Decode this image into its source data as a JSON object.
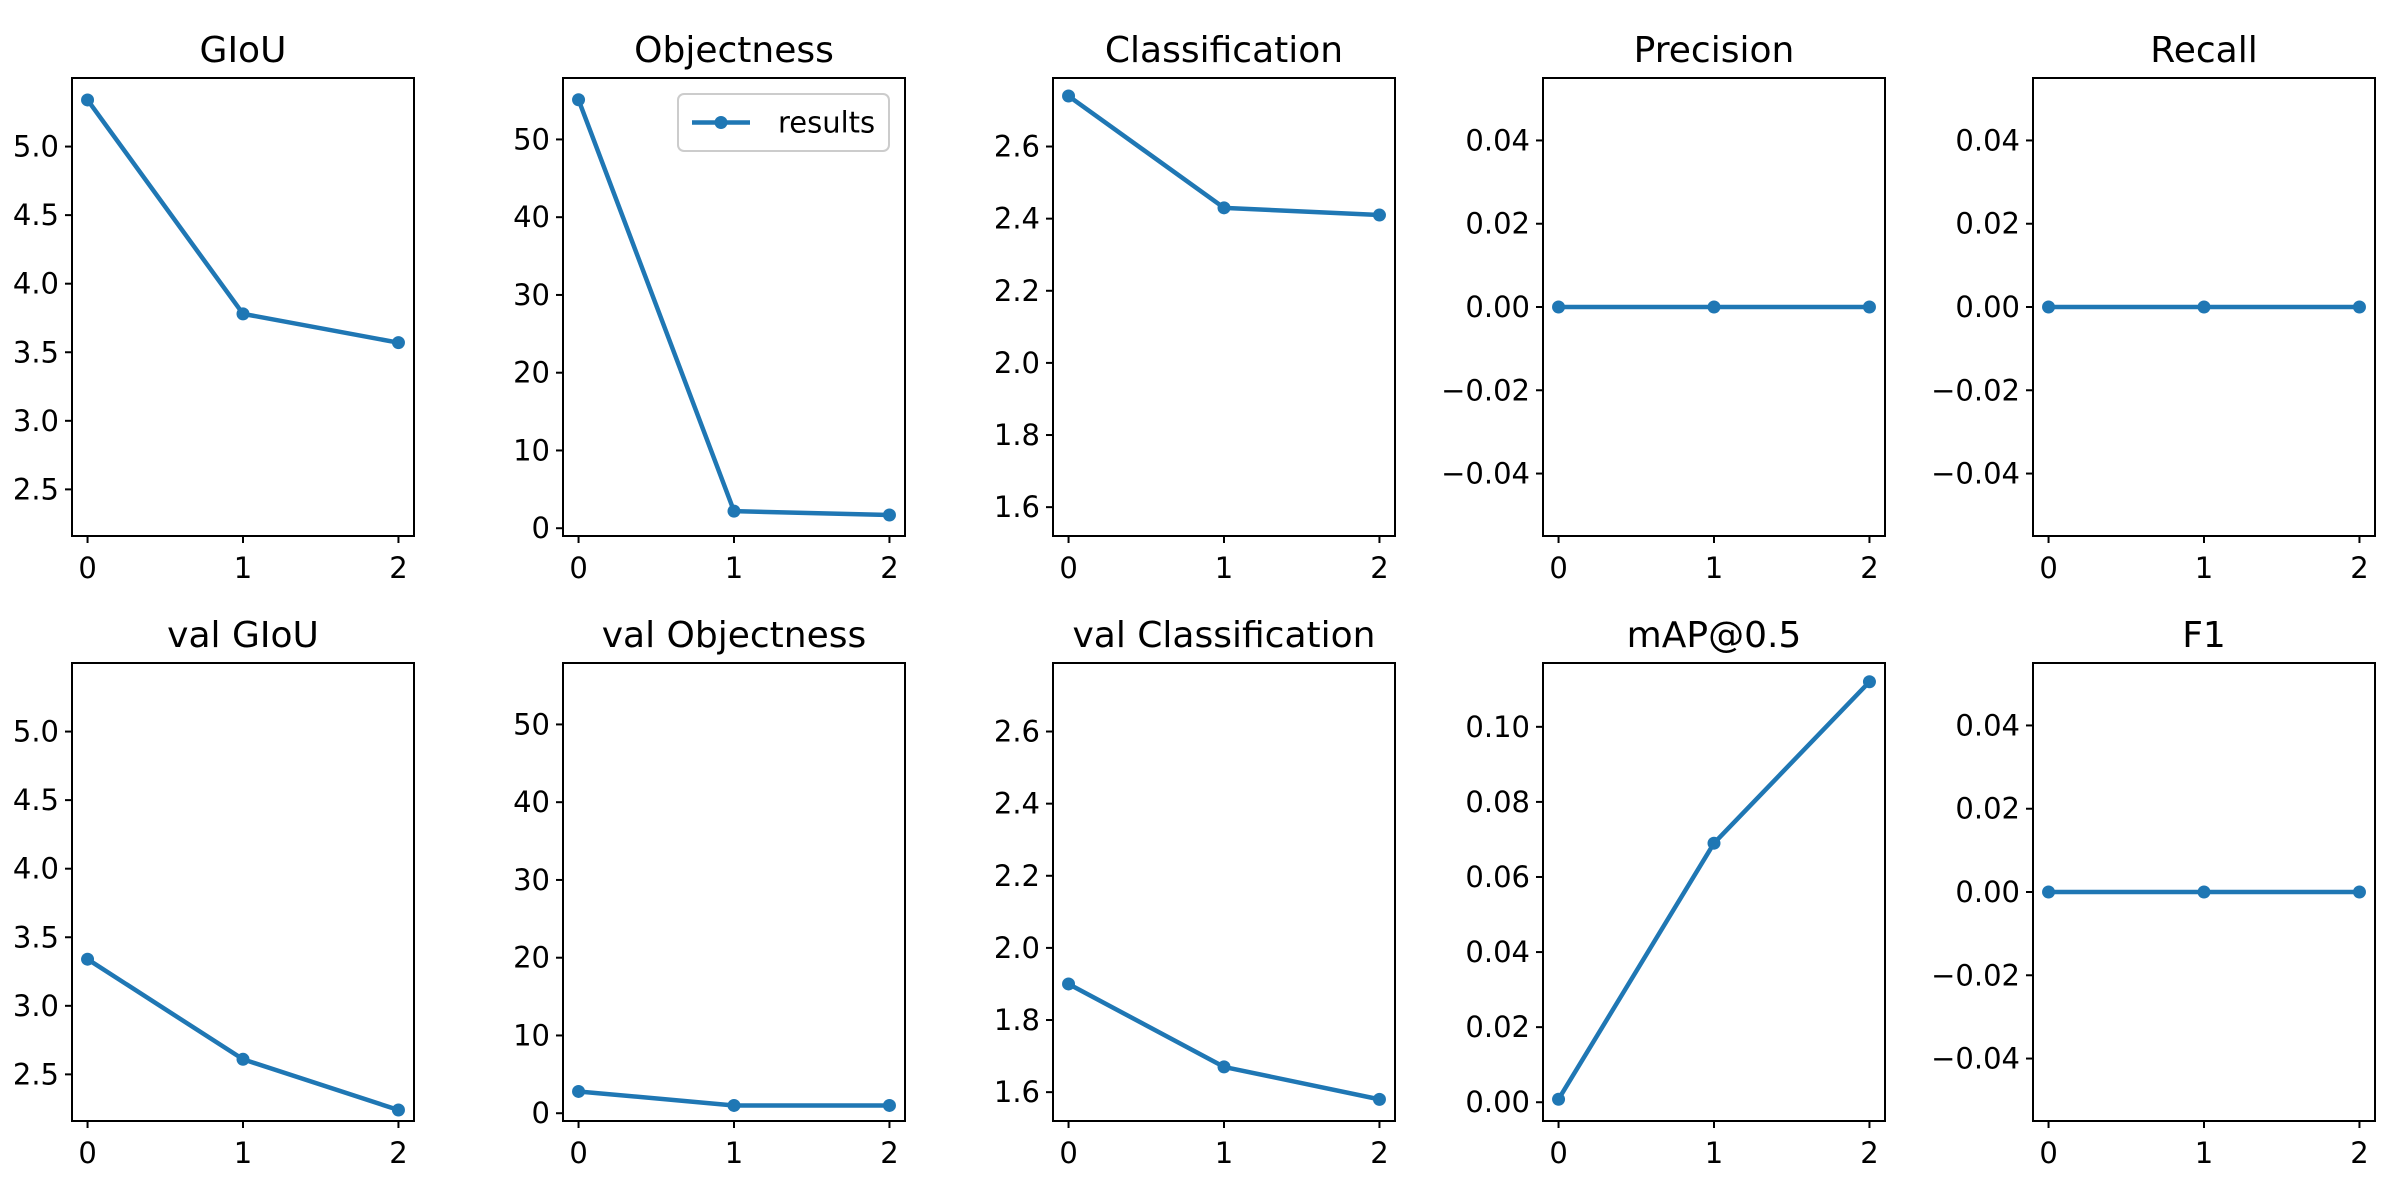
{
  "chart_data": [
    {
      "type": "line",
      "title": "GIoU",
      "x": [
        0,
        1,
        2
      ],
      "series": [
        {
          "name": "results",
          "values": [
            5.34,
            3.78,
            3.57
          ]
        }
      ],
      "ylim": [
        2.16,
        5.5
      ],
      "yticks": [
        2.5,
        3.0,
        3.5,
        4.0,
        4.5,
        5.0
      ],
      "ytick_labels": [
        "2.5",
        "3.0",
        "3.5",
        "4.0",
        "4.5",
        "5.0"
      ],
      "xticks": [
        0,
        1,
        2
      ],
      "legend": false
    },
    {
      "type": "line",
      "title": "Objectness",
      "x": [
        0,
        1,
        2
      ],
      "series": [
        {
          "name": "results",
          "values": [
            55.1,
            2.2,
            1.7
          ]
        }
      ],
      "ylim": [
        -1.0,
        57.9
      ],
      "yticks": [
        0,
        10,
        20,
        30,
        40,
        50
      ],
      "ytick_labels": [
        "0",
        "10",
        "20",
        "30",
        "40",
        "50"
      ],
      "xticks": [
        0,
        1,
        2
      ],
      "legend": true,
      "legend_position": "top-right"
    },
    {
      "type": "line",
      "title": "Classification",
      "x": [
        0,
        1,
        2
      ],
      "series": [
        {
          "name": "results",
          "values": [
            2.74,
            2.43,
            2.41
          ]
        }
      ],
      "ylim": [
        1.52,
        2.79
      ],
      "yticks": [
        1.6,
        1.8,
        2.0,
        2.2,
        2.4,
        2.6
      ],
      "ytick_labels": [
        "1.6",
        "1.8",
        "2.0",
        "2.2",
        "2.4",
        "2.6"
      ],
      "xticks": [
        0,
        1,
        2
      ],
      "legend": false
    },
    {
      "type": "line",
      "title": "Precision",
      "x": [
        0,
        1,
        2
      ],
      "series": [
        {
          "name": "results",
          "values": [
            0,
            0,
            0
          ]
        }
      ],
      "ylim": [
        -0.055,
        0.055
      ],
      "yticks": [
        -0.04,
        -0.02,
        0.0,
        0.02,
        0.04
      ],
      "ytick_labels": [
        "−0.04",
        "−0.02",
        "0.00",
        "0.02",
        "0.04"
      ],
      "xticks": [
        0,
        1,
        2
      ],
      "legend": false
    },
    {
      "type": "line",
      "title": "Recall",
      "x": [
        0,
        1,
        2
      ],
      "series": [
        {
          "name": "results",
          "values": [
            0,
            0,
            0
          ]
        }
      ],
      "ylim": [
        -0.055,
        0.055
      ],
      "yticks": [
        -0.04,
        -0.02,
        0.0,
        0.02,
        0.04
      ],
      "ytick_labels": [
        "−0.04",
        "−0.02",
        "0.00",
        "0.02",
        "0.04"
      ],
      "xticks": [
        0,
        1,
        2
      ],
      "legend": false
    },
    {
      "type": "line",
      "title": "val GIoU",
      "x": [
        0,
        1,
        2
      ],
      "series": [
        {
          "name": "results",
          "values": [
            3.34,
            2.61,
            2.24
          ]
        }
      ],
      "ylim": [
        2.16,
        5.5
      ],
      "yticks": [
        2.5,
        3.0,
        3.5,
        4.0,
        4.5,
        5.0
      ],
      "ytick_labels": [
        "2.5",
        "3.0",
        "3.5",
        "4.0",
        "4.5",
        "5.0"
      ],
      "xticks": [
        0,
        1,
        2
      ],
      "legend": false
    },
    {
      "type": "line",
      "title": "val Objectness",
      "x": [
        0,
        1,
        2
      ],
      "series": [
        {
          "name": "results",
          "values": [
            2.8,
            1.0,
            1.0
          ]
        }
      ],
      "ylim": [
        -1.0,
        57.9
      ],
      "yticks": [
        0,
        10,
        20,
        30,
        40,
        50
      ],
      "ytick_labels": [
        "0",
        "10",
        "20",
        "30",
        "40",
        "50"
      ],
      "xticks": [
        0,
        1,
        2
      ],
      "legend": false
    },
    {
      "type": "line",
      "title": "val Classification",
      "x": [
        0,
        1,
        2
      ],
      "series": [
        {
          "name": "results",
          "values": [
            1.9,
            1.67,
            1.58
          ]
        }
      ],
      "ylim": [
        1.52,
        2.79
      ],
      "yticks": [
        1.6,
        1.8,
        2.0,
        2.2,
        2.4,
        2.6
      ],
      "ytick_labels": [
        "1.6",
        "1.8",
        "2.0",
        "2.2",
        "2.4",
        "2.6"
      ],
      "xticks": [
        0,
        1,
        2
      ],
      "legend": false
    },
    {
      "type": "line",
      "title": "mAP@0.5",
      "x": [
        0,
        1,
        2
      ],
      "series": [
        {
          "name": "results",
          "values": [
            0.0008,
            0.069,
            0.112
          ]
        }
      ],
      "ylim": [
        -0.005,
        0.117
      ],
      "yticks": [
        0.0,
        0.02,
        0.04,
        0.06,
        0.08,
        0.1
      ],
      "ytick_labels": [
        "0.00",
        "0.02",
        "0.04",
        "0.06",
        "0.08",
        "0.10"
      ],
      "xticks": [
        0,
        1,
        2
      ],
      "legend": false
    },
    {
      "type": "line",
      "title": "F1",
      "x": [
        0,
        1,
        2
      ],
      "series": [
        {
          "name": "results",
          "values": [
            0,
            0,
            0
          ]
        }
      ],
      "ylim": [
        -0.055,
        0.055
      ],
      "yticks": [
        -0.04,
        -0.02,
        0.0,
        0.02,
        0.04
      ],
      "ytick_labels": [
        "−0.04",
        "−0.02",
        "0.00",
        "0.02",
        "0.04"
      ],
      "xticks": [
        0,
        1,
        2
      ],
      "legend": false
    }
  ],
  "colors": {
    "series": "#1f77b4",
    "axes": "#000000",
    "background": "#ffffff",
    "legend_frame": "#cccccc"
  },
  "grid": false,
  "layout": {
    "rows": 2,
    "cols": 5
  }
}
